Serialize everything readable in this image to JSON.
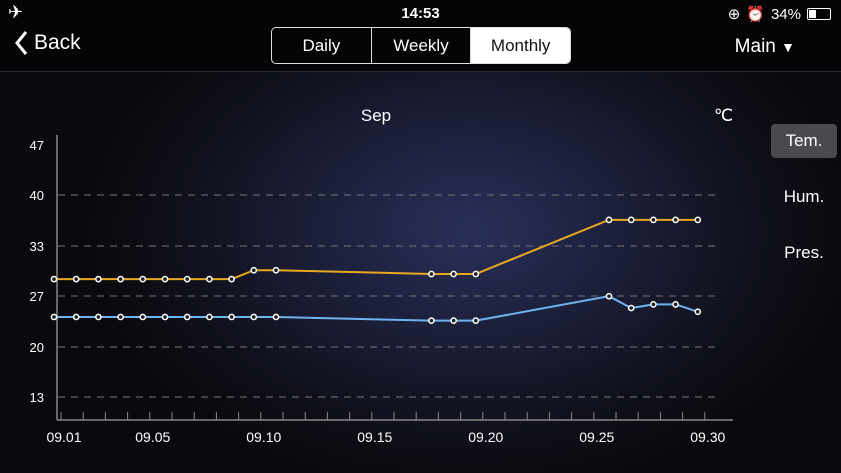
{
  "status_bar": {
    "time": "14:53",
    "battery": "34%",
    "battery_level": 0.34,
    "icons": [
      "airplane-icon",
      "rotation-lock-icon",
      "alarm-icon",
      "battery-icon"
    ]
  },
  "header": {
    "back_label": "Back",
    "tabs": [
      "Daily",
      "Weekly",
      "Monthly"
    ],
    "selected_tab": "Monthly",
    "location": "Main"
  },
  "side_options": [
    "Tem.",
    "Hum.",
    "Pres."
  ],
  "selected_option": "Tem.",
  "colors": {
    "high": "#e8a820",
    "low": "#6cb4f0"
  },
  "chart_data": {
    "type": "line",
    "title": "Sep",
    "ylabel": "℃",
    "yticks": [
      47,
      40,
      33,
      27,
      20,
      13
    ],
    "ylim": [
      13,
      47
    ],
    "xticks": [
      "09.01",
      "09.05",
      "09.10",
      "09.15",
      "09.20",
      "09.25",
      "09.30"
    ],
    "xtick_days": [
      1,
      5,
      10,
      15,
      20,
      25,
      30
    ],
    "xlim": [
      1,
      30
    ],
    "series": [
      {
        "name": "high",
        "days": [
          1,
          2,
          3,
          4,
          5,
          6,
          7,
          8,
          9,
          10,
          11,
          18,
          19,
          20,
          26,
          27,
          28,
          29,
          30
        ],
        "values": [
          28.9,
          28.9,
          28.9,
          28.9,
          28.9,
          28.9,
          28.9,
          28.9,
          28.9,
          30.1,
          30.1,
          29.6,
          29.6,
          29.6,
          36.9,
          36.9,
          36.9,
          36.9,
          36.9
        ]
      },
      {
        "name": "low",
        "days": [
          1,
          2,
          3,
          4,
          5,
          6,
          7,
          8,
          9,
          10,
          11,
          18,
          19,
          20,
          26,
          27,
          28,
          29,
          30
        ],
        "values": [
          23.8,
          23.8,
          23.8,
          23.8,
          23.8,
          23.8,
          23.8,
          23.8,
          23.8,
          23.8,
          23.8,
          23.3,
          23.3,
          23.3,
          26.6,
          25.0,
          25.5,
          25.5,
          24.5
        ]
      }
    ]
  }
}
